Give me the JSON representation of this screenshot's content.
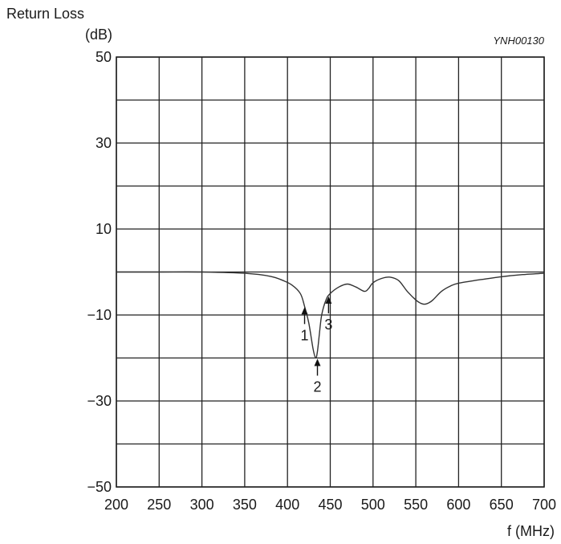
{
  "chart_data": {
    "type": "line",
    "ylabel_line1": "Return Loss",
    "ylabel_line2": "(dB)",
    "xlabel": "f (MHz)",
    "figure_code": "YNH00130",
    "xlim": [
      200,
      700
    ],
    "ylim": [
      -50,
      50
    ],
    "x_ticks": [
      200,
      250,
      300,
      350,
      400,
      450,
      500,
      550,
      600,
      650,
      700
    ],
    "y_ticks": [
      50,
      30,
      10,
      -10,
      -30,
      -50
    ],
    "y_tick_labels": [
      "50",
      "30",
      "10",
      "−10",
      "−30",
      "−50"
    ],
    "y_grid": [
      50,
      40,
      30,
      20,
      10,
      0,
      -10,
      -20,
      -30,
      -40,
      -50
    ],
    "grid": true,
    "series": [
      {
        "x": [
          200,
          250,
          300,
          350,
          380,
          395,
          405,
          415,
          420,
          425,
          430,
          433,
          435,
          437,
          440,
          445,
          450,
          460,
          470,
          480,
          490,
          495,
          500,
          510,
          520,
          530,
          540,
          550,
          555,
          560,
          565,
          570,
          580,
          590,
          600,
          625,
          650,
          675,
          700
        ],
        "y": [
          0,
          0,
          0,
          -0.3,
          -1.0,
          -2.0,
          -3.0,
          -5.0,
          -8.0,
          -12.0,
          -18.0,
          -20.0,
          -18.5,
          -15.0,
          -10.0,
          -6.5,
          -5.0,
          -3.5,
          -2.8,
          -3.5,
          -4.5,
          -3.8,
          -2.5,
          -1.5,
          -1.2,
          -2.0,
          -4.5,
          -6.5,
          -7.2,
          -7.5,
          -7.2,
          -6.5,
          -4.5,
          -3.3,
          -2.6,
          -1.8,
          -1.1,
          -0.6,
          -0.3
        ]
      }
    ],
    "markers": [
      {
        "label": "1",
        "x": 420,
        "y": -8.0,
        "direction": "up"
      },
      {
        "label": "2",
        "x": 435,
        "y": -20.0,
        "direction": "up"
      },
      {
        "label": "3",
        "x": 448,
        "y": -5.5,
        "direction": "up"
      }
    ]
  }
}
